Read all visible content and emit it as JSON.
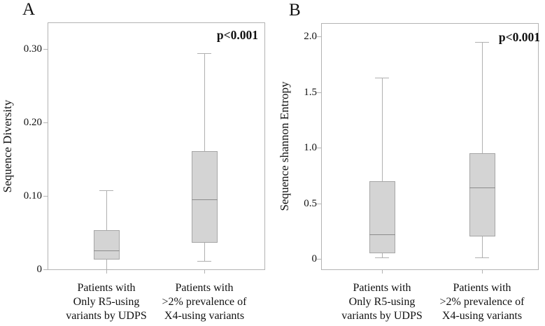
{
  "colors": {
    "box_fill": "#d4d4d4",
    "box_border": "#a6a6a6",
    "median": "#8c8c8c",
    "whisker": "#b0b0b0",
    "frame": "#b3b3b3",
    "text": "#111111"
  },
  "chart_data": [
    {
      "type": "box",
      "panel_label": "A",
      "ylabel": "Sequence Diversity",
      "p_annotation": "p<0.001",
      "ylim": [
        0,
        0.335
      ],
      "grid": false,
      "legend": null,
      "yticks": {
        "values": [
          0,
          0.1,
          0.2,
          0.3
        ],
        "labels": [
          "0",
          "0.10",
          "0.20",
          "0.30"
        ]
      },
      "categories": [
        [
          "Patients with",
          "Only R5-using",
          "variants by UDPS"
        ],
        [
          "Patients with",
          ">2% prevalence of",
          "X4-using variants"
        ]
      ],
      "series": [
        {
          "name": "Patients with Only R5-using variants by UDPS",
          "min": 0.0,
          "q1": 0.013,
          "median": 0.026,
          "q3": 0.053,
          "max": 0.108
        },
        {
          "name": "Patients with >2% prevalence of X4-using variants",
          "min": 0.011,
          "q1": 0.036,
          "median": 0.095,
          "q3": 0.161,
          "max": 0.294
        }
      ]
    },
    {
      "type": "box",
      "panel_label": "B",
      "ylabel": "Sequence shannon Entropy",
      "p_annotation": "p<0.001",
      "ylim": [
        -0.09,
        2.12
      ],
      "grid": false,
      "legend": null,
      "yticks": {
        "values": [
          0,
          0.5,
          1.0,
          1.5,
          2.0
        ],
        "labels": [
          "0",
          "0.5",
          "1.0",
          "1.5",
          "2.0"
        ]
      },
      "categories": [
        [
          "Patients with",
          "Only R5-using",
          "variants by UDPS"
        ],
        [
          "Patients with",
          ">2% prevalence of",
          "X4-using variants"
        ]
      ],
      "series": [
        {
          "name": "Patients with Only R5-using variants by UDPS",
          "min": 0.01,
          "q1": 0.05,
          "median": 0.22,
          "q3": 0.7,
          "max": 1.63
        },
        {
          "name": "Patients with >2% prevalence of X4-using variants",
          "min": 0.01,
          "q1": 0.2,
          "median": 0.64,
          "q3": 0.95,
          "max": 1.95
        }
      ]
    }
  ]
}
